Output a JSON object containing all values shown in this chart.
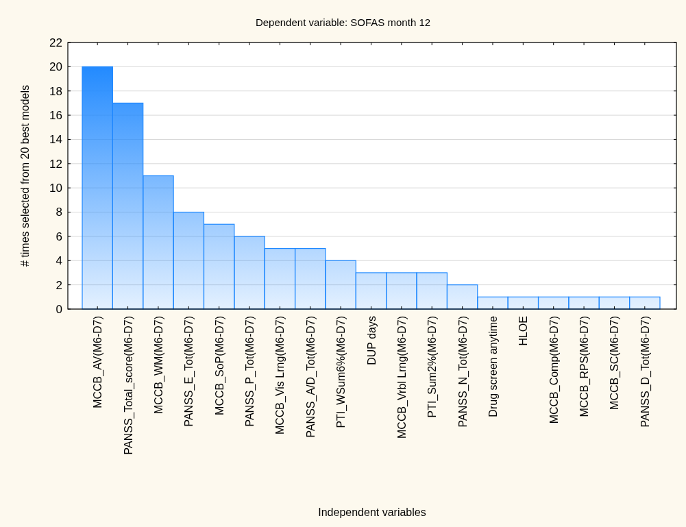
{
  "chart_data": {
    "type": "bar",
    "title": "Dependent variable: SOFAS month 12",
    "xlabel": "Independent variables",
    "ylabel": "# times selected from 20 best models",
    "categories": [
      "MCCB_AV(M6-D7)",
      "PANSS_Total_score(M6-D7)",
      "MCCB_WM(M6-D7)",
      "PANSS_E_Tot(M6-D7)",
      "MCCB_SoP(M6-D7)",
      "PANSS_P_Tot(M6-D7)",
      "MCCB_Vis Lrng(M6-D7)",
      "PANSS_A/D_Tot(M6-D7)",
      "PTI_WSum6%(M6-D7)",
      "DUP days",
      "MCCB_Vrbl Lrng(M6-D7)",
      "PTI_Sum2%(M6-D7)",
      "PANSS_N_Tot(M6-D7)",
      "Drug screen anytime",
      "HLOE",
      "MCCB_Comp(M6-D7)",
      "MCCB_RPS(M6-D7)",
      "MCCB_SC(M6-D7)",
      "PANSS_D_Tot(M6-D7)"
    ],
    "values": [
      20,
      17,
      11,
      8,
      7,
      6,
      5,
      5,
      4,
      3,
      3,
      3,
      2,
      1,
      1,
      1,
      1,
      1,
      1
    ],
    "color": "#1e88ff",
    "ylim": [
      0,
      22
    ],
    "yticks": [
      0,
      2,
      4,
      6,
      8,
      10,
      12,
      14,
      16,
      18,
      20,
      22
    ],
    "grid": "y"
  }
}
